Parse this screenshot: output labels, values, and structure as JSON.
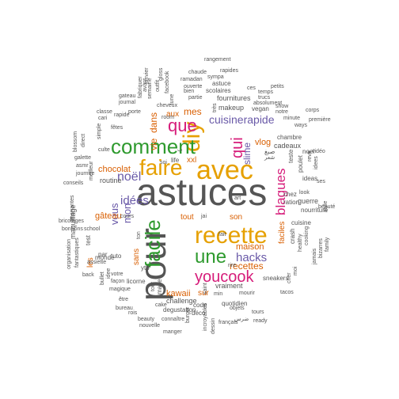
{
  "colors": {
    "gray": "#555555",
    "orange": "#e6a000",
    "green": "#2e9a2e",
    "magenta": "#d61c7a",
    "purple": "#6a5aa8",
    "teal": "#1b9e77",
    "burnt": "#d95f02"
  },
  "words": [
    {
      "text": "astuces",
      "color": "gray"
    },
    {
      "text": "pour",
      "color": "gray"
    },
    {
      "text": "faire",
      "color": "orange"
    },
    {
      "text": "avec",
      "color": "orange"
    },
    {
      "text": "recette",
      "color": "orange"
    },
    {
      "text": "diy",
      "color": "orange"
    },
    {
      "text": "comment",
      "color": "green"
    },
    {
      "text": "facile",
      "color": "green"
    },
    {
      "text": "une",
      "color": "green"
    },
    {
      "text": "blagues",
      "color": "magenta"
    },
    {
      "text": "youcook",
      "color": "magenta"
    },
    {
      "text": "que",
      "color": "magenta"
    },
    {
      "text": "qui",
      "color": "magenta"
    },
    {
      "text": "cuisinerapide",
      "color": "purple"
    },
    {
      "text": "noël",
      "color": "purple"
    },
    {
      "text": "idées",
      "color": "purple"
    },
    {
      "text": "hacks",
      "color": "purple"
    },
    {
      "text": "vous",
      "color": "purple"
    },
    {
      "text": "mon",
      "color": "purple"
    },
    {
      "text": "slime",
      "color": "purple"
    },
    {
      "text": "recettes",
      "color": "burnt"
    },
    {
      "text": "chocolat",
      "color": "burnt"
    },
    {
      "text": "gâteau",
      "color": "burnt"
    },
    {
      "text": "maison",
      "color": "burnt"
    },
    {
      "text": "faciles",
      "color": "burnt"
    },
    {
      "text": "mes",
      "color": "burnt"
    },
    {
      "text": "dans",
      "color": "burnt"
    },
    {
      "text": "vie",
      "color": "burnt"
    },
    {
      "text": "vlog",
      "color": "burnt"
    },
    {
      "text": "kawaii",
      "color": "burnt"
    },
    {
      "text": "sur",
      "color": "burnt"
    },
    {
      "text": "aux",
      "color": "burnt"
    },
    {
      "text": "les",
      "color": "burnt"
    },
    {
      "text": "sans",
      "color": "burnt"
    },
    {
      "text": "xxl",
      "color": "burnt"
    },
    {
      "text": "tout",
      "color": "burnt"
    },
    {
      "text": "son",
      "color": "burnt"
    },
    {
      "text": "cadeaux",
      "color": "gray"
    },
    {
      "text": "fournitures",
      "color": "gray"
    },
    {
      "text": "makeup",
      "color": "gray"
    },
    {
      "text": "scolaires",
      "color": "gray"
    },
    {
      "text": "life",
      "color": "gray"
    },
    {
      "text": "maquillage",
      "color": "gray"
    },
    {
      "text": "routine",
      "color": "gray"
    },
    {
      "text": "challenge",
      "color": "gray"
    },
    {
      "text": "degustation",
      "color": "gray"
    },
    {
      "text": "vraiment",
      "color": "gray"
    },
    {
      "text": "quotidien",
      "color": "gray"
    },
    {
      "text": "nourriture",
      "color": "gray"
    },
    {
      "text": "guerre",
      "color": "gray"
    },
    {
      "text": "chez",
      "color": "gray"
    },
    {
      "text": "ration",
      "color": "gray"
    },
    {
      "text": "cuisine",
      "color": "gray"
    },
    {
      "text": "crash",
      "color": "gray"
    },
    {
      "text": "test",
      "color": "gray"
    },
    {
      "text": "teste",
      "color": "gray"
    },
    {
      "text": "ideas",
      "color": "gray"
    },
    {
      "text": "chambre",
      "color": "gray"
    },
    {
      "text": "noel",
      "color": "gray"
    },
    {
      "text": "poulet",
      "color": "gray"
    },
    {
      "text": "revé",
      "color": "gray"
    },
    {
      "text": "astuce",
      "color": "gray"
    },
    {
      "text": "sympa",
      "color": "gray"
    },
    {
      "text": "partie",
      "color": "gray"
    },
    {
      "text": "ramadan",
      "color": "gray"
    },
    {
      "text": "bien",
      "color": "gray"
    },
    {
      "text": "ouverte",
      "color": "gray"
    },
    {
      "text": "chaude",
      "color": "gray"
    },
    {
      "text": "rangement",
      "color": "gray"
    },
    {
      "text": "rapides",
      "color": "gray"
    },
    {
      "text": "ces",
      "color": "gray"
    },
    {
      "text": "petits",
      "color": "gray"
    },
    {
      "text": "temps",
      "color": "gray"
    },
    {
      "text": "trucs",
      "color": "gray"
    },
    {
      "text": "absolument",
      "color": "gray"
    },
    {
      "text": "vegan",
      "color": "gray"
    },
    {
      "text": "show",
      "color": "gray"
    },
    {
      "text": "notre",
      "color": "gray"
    },
    {
      "text": "minute",
      "color": "gray"
    },
    {
      "text": "corps",
      "color": "gray"
    },
    {
      "text": "première",
      "color": "gray"
    },
    {
      "text": "ways",
      "color": "gray"
    },
    {
      "text": "fêtes",
      "color": "gray"
    },
    {
      "text": "rapide",
      "color": "gray"
    },
    {
      "text": "porte",
      "color": "gray"
    },
    {
      "text": "classe",
      "color": "gray"
    },
    {
      "text": "cari",
      "color": "gray"
    },
    {
      "text": "journal",
      "color": "gray"
    },
    {
      "text": "gateau",
      "color": "gray"
    },
    {
      "text": "fabriquer",
      "color": "gray"
    },
    {
      "text": "cheveux",
      "color": "gray"
    },
    {
      "text": "room",
      "color": "gray"
    },
    {
      "text": "semaine",
      "color": "gray"
    },
    {
      "text": "outfit",
      "color": "gray"
    },
    {
      "text": "facebook",
      "color": "gray"
    },
    {
      "text": "gloss",
      "color": "gray"
    },
    {
      "text": "janvier",
      "color": "gray"
    },
    {
      "text": "avant",
      "color": "gray"
    },
    {
      "text": "simple",
      "color": "gray"
    },
    {
      "text": "blossom",
      "color": "gray"
    },
    {
      "text": "direct",
      "color": "gray"
    },
    {
      "text": "meilleur",
      "color": "gray"
    },
    {
      "text": "culte",
      "color": "gray"
    },
    {
      "text": "galette",
      "color": "gray"
    },
    {
      "text": "asmr",
      "color": "gray"
    },
    {
      "text": "journée",
      "color": "gray"
    },
    {
      "text": "conseils",
      "color": "gray"
    },
    {
      "text": "marrantes",
      "color": "gray"
    },
    {
      "text": "bricolages",
      "color": "gray"
    },
    {
      "text": "bonbons",
      "color": "gray"
    },
    {
      "text": "school",
      "color": "gray"
    },
    {
      "text": "monde",
      "color": "gray"
    },
    {
      "text": "cours",
      "color": "gray"
    },
    {
      "text": "organisation",
      "color": "gray"
    },
    {
      "text": "fantastiques",
      "color": "gray"
    },
    {
      "text": "assiette",
      "color": "gray"
    },
    {
      "text": "par",
      "color": "gray"
    },
    {
      "text": "tuto",
      "color": "gray"
    },
    {
      "text": "back",
      "color": "gray"
    },
    {
      "text": "bullet",
      "color": "gray"
    },
    {
      "text": "idee",
      "color": "gray"
    },
    {
      "text": "façon",
      "color": "gray"
    },
    {
      "text": "votre",
      "color": "gray"
    },
    {
      "text": "magique",
      "color": "gray"
    },
    {
      "text": "licorne",
      "color": "gray"
    },
    {
      "text": "ytb",
      "color": "gray"
    },
    {
      "text": "make",
      "color": "gray"
    },
    {
      "text": "tour",
      "color": "gray"
    },
    {
      "text": "être",
      "color": "gray"
    },
    {
      "text": "bureau",
      "color": "gray"
    },
    {
      "text": "rois",
      "color": "gray"
    },
    {
      "text": "beauty",
      "color": "gray"
    },
    {
      "text": "cake",
      "color": "gray"
    },
    {
      "text": "nouvelle",
      "color": "gray"
    },
    {
      "text": "manger",
      "color": "gray"
    },
    {
      "text": "connaître",
      "color": "gray"
    },
    {
      "text": "burger",
      "color": "gray"
    },
    {
      "text": "déco",
      "color": "gray"
    },
    {
      "text": "code",
      "color": "gray"
    },
    {
      "text": "incroyables",
      "color": "gray"
    },
    {
      "text": "dessin",
      "color": "gray"
    },
    {
      "text": "saint",
      "color": "gray"
    },
    {
      "text": "min",
      "color": "gray"
    },
    {
      "text": "mourir",
      "color": "gray"
    },
    {
      "text": "objets",
      "color": "gray"
    },
    {
      "text": "tours",
      "color": "gray"
    },
    {
      "text": "ready",
      "color": "gray"
    },
    {
      "text": "français",
      "color": "gray"
    },
    {
      "text": "tacos",
      "color": "gray"
    },
    {
      "text": "sneakers",
      "color": "gray"
    },
    {
      "text": "cher",
      "color": "gray"
    },
    {
      "text": "moi",
      "color": "gray"
    },
    {
      "text": "jamais",
      "color": "gray"
    },
    {
      "text": "bizarres",
      "color": "gray"
    },
    {
      "text": "family",
      "color": "gray"
    },
    {
      "text": "beauté",
      "color": "gray"
    },
    {
      "text": "style",
      "color": "gray"
    },
    {
      "text": "look",
      "color": "gray"
    },
    {
      "text": "healthy",
      "color": "gray"
    },
    {
      "text": "cooking",
      "color": "gray"
    },
    {
      "text": "vidéo",
      "color": "gray"
    },
    {
      "text": "ses",
      "color": "gray"
    },
    {
      "text": "idees",
      "color": "gray"
    },
    {
      "text": "rire",
      "color": "gray"
    },
    {
      "text": "fait",
      "color": "gray"
    },
    {
      "text": "art",
      "color": "gray"
    },
    {
      "text": "jai",
      "color": "gray"
    },
    {
      "text": "soi",
      "color": "gray"
    },
    {
      "text": "ton",
      "color": "gray"
    },
    {
      "text": "très",
      "color": "gray"
    },
    {
      "text": "lune",
      "color": "gray"
    },
    {
      "text": "صبغ",
      "color": "gray"
    },
    {
      "text": "شعر",
      "color": "gray"
    },
    {
      "text": "ضرس",
      "color": "gray"
    },
    {
      "text": "ب",
      "color": "gray"
    }
  ]
}
